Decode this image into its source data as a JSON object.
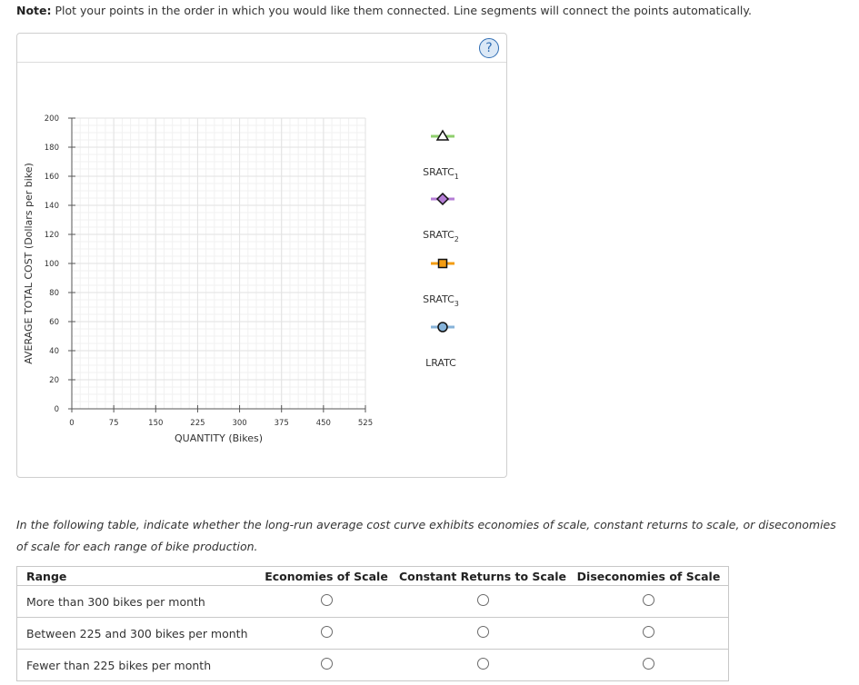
{
  "note": {
    "bold": "Note:",
    "text": "Plot your points in the order in which you would like them connected. Line segments will connect the points automatically."
  },
  "help_label": "?",
  "chart_data": {
    "type": "line",
    "xlabel": "QUANTITY (Bikes)",
    "ylabel": "AVERAGE TOTAL COST (Dollars per bike)",
    "xlim": [
      0,
      525
    ],
    "ylim": [
      0,
      200
    ],
    "x_ticks": [
      0,
      75,
      150,
      225,
      300,
      375,
      450,
      525
    ],
    "y_ticks": [
      0,
      20,
      40,
      60,
      80,
      100,
      120,
      140,
      160,
      180,
      200
    ],
    "grid": true,
    "series": []
  },
  "legend": [
    {
      "base": "SRATC",
      "sub": "1",
      "marker": "triangle",
      "fill": "#ffffff",
      "line_color": "#8fcf6e"
    },
    {
      "base": "SRATC",
      "sub": "2",
      "marker": "diamond",
      "fill": "#b57dd6",
      "line_color": "#b57dd6"
    },
    {
      "base": "SRATC",
      "sub": "3",
      "marker": "square",
      "fill": "#f39c12",
      "line_color": "#f39c12"
    },
    {
      "base": "LRATC",
      "sub": "",
      "marker": "circle",
      "fill": "#86b3d9",
      "line_color": "#86b3d9"
    }
  ],
  "description": "In the following table, indicate whether the long-run average cost curve exhibits economies of scale, constant returns to scale, or diseconomies of scale for each range of bike production.",
  "table": {
    "headers": [
      "Range",
      "Economies of Scale",
      "Constant Returns to Scale",
      "Diseconomies of Scale"
    ],
    "rows": [
      {
        "range": "More than 300 bikes per month"
      },
      {
        "range": "Between 225 and 300 bikes per month"
      },
      {
        "range": "Fewer than 225 bikes per month"
      }
    ]
  }
}
